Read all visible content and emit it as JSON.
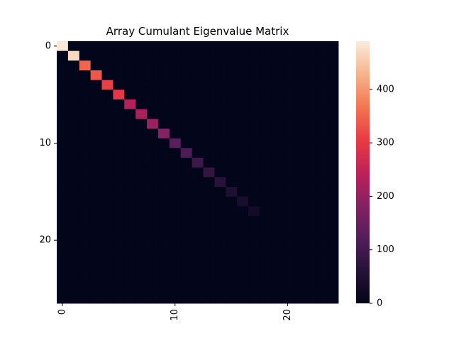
{
  "chart_data": {
    "type": "heatmap",
    "title": "Array Cumulant Eigenvalue Matrix",
    "xlabel": "",
    "ylabel": "",
    "rows": 27,
    "cols": 25,
    "x_ticks": [
      {
        "value": 0,
        "label": "0"
      },
      {
        "value": 10,
        "label": "10"
      },
      {
        "value": 20,
        "label": "20"
      }
    ],
    "y_ticks": [
      {
        "value": 0,
        "label": "0"
      },
      {
        "value": 10,
        "label": "10"
      },
      {
        "value": 20,
        "label": "20"
      }
    ],
    "colorbar": {
      "vmin": 0,
      "vmax": 490,
      "ticks": [
        {
          "value": 0,
          "label": "0"
        },
        {
          "value": 100,
          "label": "100"
        },
        {
          "value": 200,
          "label": "200"
        },
        {
          "value": 300,
          "label": "300"
        },
        {
          "value": 400,
          "label": "400"
        }
      ],
      "colormap": "rocket"
    },
    "diagonal_values": [
      485,
      470,
      350,
      335,
      310,
      300,
      235,
      225,
      205,
      185,
      130,
      115,
      95,
      80,
      65,
      50,
      40,
      30
    ],
    "note_off_diagonal": 0
  }
}
